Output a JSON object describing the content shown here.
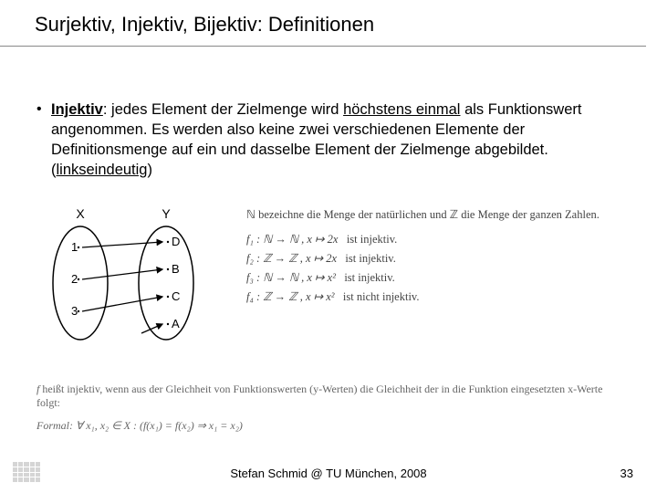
{
  "title": "Surjektiv, Injektiv, Bijektiv: Definitionen",
  "bullet": {
    "term": "Injektiv",
    "body1": ": jedes Element der Zielmenge wird ",
    "emph1": "höchstens einmal",
    "body2": " als Funktionswert angenommen. Es werden also keine zwei verschiedenen Elemente der Definitionsmenge auf ein und dasselbe Element der Zielmenge abgebildet. (",
    "emph2": "linkseindeutig",
    "body3": ")"
  },
  "diagram": {
    "set_left_label": "X",
    "set_right_label": "Y",
    "left_items": [
      "1",
      "2",
      "3"
    ],
    "right_items": [
      "D",
      "B",
      "C",
      "A"
    ],
    "mappings": [
      [
        0,
        0
      ],
      [
        1,
        1
      ],
      [
        2,
        2
      ]
    ],
    "extra_arrow_target": 3,
    "ellipse_color": "#000000",
    "text_color": "#000000"
  },
  "math": {
    "intro": "ℕ bezeichne die Menge der natürlichen und ℤ die Menge der ganzen Zahlen.",
    "lines": [
      {
        "fn": "f₁ : ℕ → ℕ ,   x ↦ 2x",
        "note": "ist injektiv."
      },
      {
        "fn": "f₂ : ℤ → ℤ ,   x ↦ 2x",
        "note": "ist injektiv."
      },
      {
        "fn": "f₃ : ℕ → ℕ ,   x ↦ x²",
        "note": "ist injektiv."
      },
      {
        "fn": "f₄ : ℤ → ℤ ,   x ↦ x²",
        "note": "ist nicht injektiv."
      }
    ]
  },
  "textblock": {
    "line": "f heißt injektiv, wenn aus der Gleichheit von Funktionswerten (y-Werten) die Gleichheit der in die Funktion eingesetzten x-Werte folgt:",
    "formal": "Formal: ∀ x₁, x₂ ∈ X : (f(x₁) = f(x₂) ⇒ x₁ = x₂)"
  },
  "footer": {
    "center": "Stefan Schmid @ TU München, 2008",
    "page": "33"
  },
  "colors": {
    "bg": "#ffffff",
    "text": "#000000",
    "faded": "#666666"
  }
}
